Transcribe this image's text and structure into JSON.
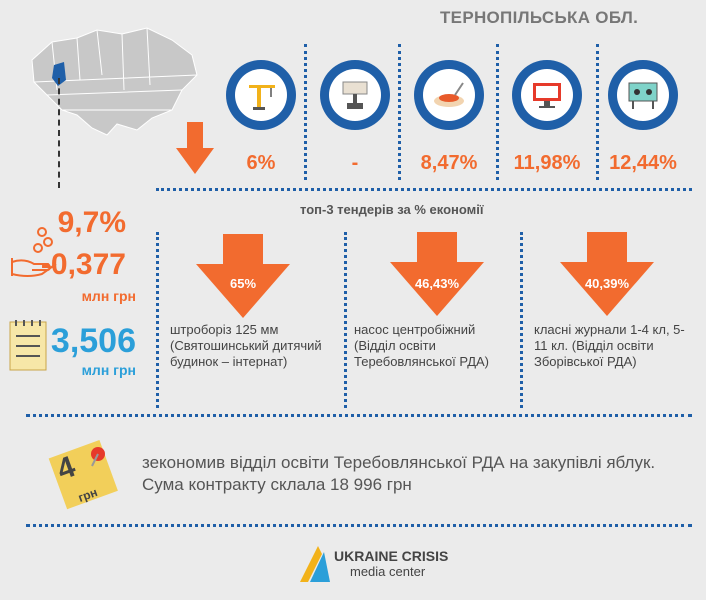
{
  "title": "ТЕРНОПІЛЬСЬКА ОБЛ.",
  "categories": [
    {
      "icon": "crane-icon",
      "pct": "6%"
    },
    {
      "icon": "paint-roller-icon",
      "pct": "-"
    },
    {
      "icon": "food-plate-icon",
      "pct": "8,47%"
    },
    {
      "icon": "computer-icon",
      "pct": "11,98%"
    },
    {
      "icon": "classroom-board-icon",
      "pct": "12,44%"
    }
  ],
  "subtitle": "топ-3 тендерів за % економії",
  "stats": {
    "savings_pct": "9,7%",
    "savings_amount": "-0,377",
    "savings_unit": "млн грн",
    "total_amount": "3,506",
    "total_unit": "млн грн"
  },
  "tenders": [
    {
      "pct": "65%",
      "desc": "штроборіз 125 мм (Святошинський дитячий будинок – інтернат)"
    },
    {
      "pct": "46,43%",
      "desc": "насос центробіжний (Відділ освіти Теребовлянської РДА)"
    },
    {
      "pct": "40,39%",
      "desc": "класні журнали 1-4 кл, 5-11 кл. (Відділ освіти Зборівської РДА)"
    }
  ],
  "footer": {
    "note_number": "4",
    "note_unit": "грн",
    "text": "зекономив відділ освіти Теребовлянської РДА на закупівлі яблук. Сума контракту склала 18 996 грн"
  },
  "logo": {
    "line1": "UKRAINE CRISIS",
    "line2": "media center"
  },
  "colors": {
    "accent": "#f26b2f",
    "blue": "#1f5fa8",
    "gray": "#777777"
  }
}
